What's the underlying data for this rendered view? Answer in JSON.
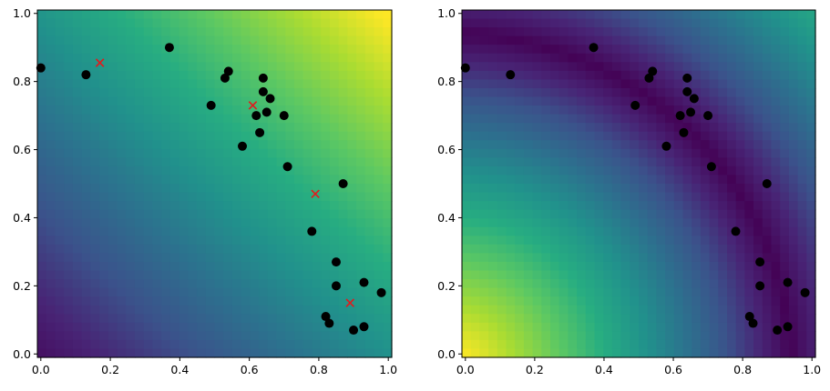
{
  "chart_data": [
    {
      "type": "heatmap",
      "title": "",
      "xlabel": "",
      "ylabel": "",
      "xlim": [
        -0.01,
        1.01
      ],
      "ylim": [
        -0.01,
        1.01
      ],
      "grid": false,
      "colormap": "viridis",
      "field": "linear gradient, low at bottom-left, high at top-right",
      "xticks": [
        "0.0",
        "0.2",
        "0.4",
        "0.6",
        "0.8",
        "1.0"
      ],
      "yticks": [
        "0.0",
        "0.2",
        "0.4",
        "0.6",
        "0.8",
        "1.0"
      ],
      "points": {
        "color": "#000000",
        "marker": "o",
        "x": [
          0.0,
          0.13,
          0.37,
          0.49,
          0.53,
          0.54,
          0.58,
          0.62,
          0.63,
          0.64,
          0.64,
          0.65,
          0.66,
          0.7,
          0.71,
          0.78,
          0.82,
          0.83,
          0.85,
          0.85,
          0.87,
          0.9,
          0.93,
          0.93,
          0.98
        ],
        "y": [
          0.84,
          0.82,
          0.9,
          0.73,
          0.81,
          0.83,
          0.61,
          0.7,
          0.65,
          0.81,
          0.77,
          0.71,
          0.75,
          0.7,
          0.55,
          0.36,
          0.11,
          0.09,
          0.27,
          0.2,
          0.5,
          0.07,
          0.21,
          0.08,
          0.18
        ]
      },
      "crosses": {
        "color": "#e31a1c",
        "marker": "x",
        "x": [
          0.17,
          0.61,
          0.79,
          0.89
        ],
        "y": [
          0.855,
          0.73,
          0.47,
          0.15
        ]
      }
    },
    {
      "type": "heatmap",
      "title": "",
      "xlabel": "",
      "ylabel": "",
      "xlim": [
        -0.01,
        1.01
      ],
      "ylim": [
        -0.01,
        1.01
      ],
      "grid": false,
      "colormap": "viridis",
      "field": "distance from a curved arc through the points; high at bottom-left",
      "xticks": [
        "0.0",
        "0.2",
        "0.4",
        "0.6",
        "0.8",
        "1.0"
      ],
      "yticks": [
        "0.0",
        "0.2",
        "0.4",
        "0.6",
        "0.8",
        "1.0"
      ],
      "points": {
        "color": "#000000",
        "marker": "o",
        "x": [
          0.0,
          0.13,
          0.37,
          0.49,
          0.53,
          0.54,
          0.58,
          0.62,
          0.63,
          0.64,
          0.64,
          0.65,
          0.66,
          0.7,
          0.71,
          0.78,
          0.82,
          0.83,
          0.85,
          0.85,
          0.87,
          0.9,
          0.93,
          0.93,
          0.98
        ],
        "y": [
          0.84,
          0.82,
          0.9,
          0.73,
          0.81,
          0.83,
          0.61,
          0.7,
          0.65,
          0.81,
          0.77,
          0.71,
          0.75,
          0.7,
          0.55,
          0.36,
          0.11,
          0.09,
          0.27,
          0.2,
          0.5,
          0.07,
          0.21,
          0.08,
          0.18
        ]
      }
    }
  ]
}
